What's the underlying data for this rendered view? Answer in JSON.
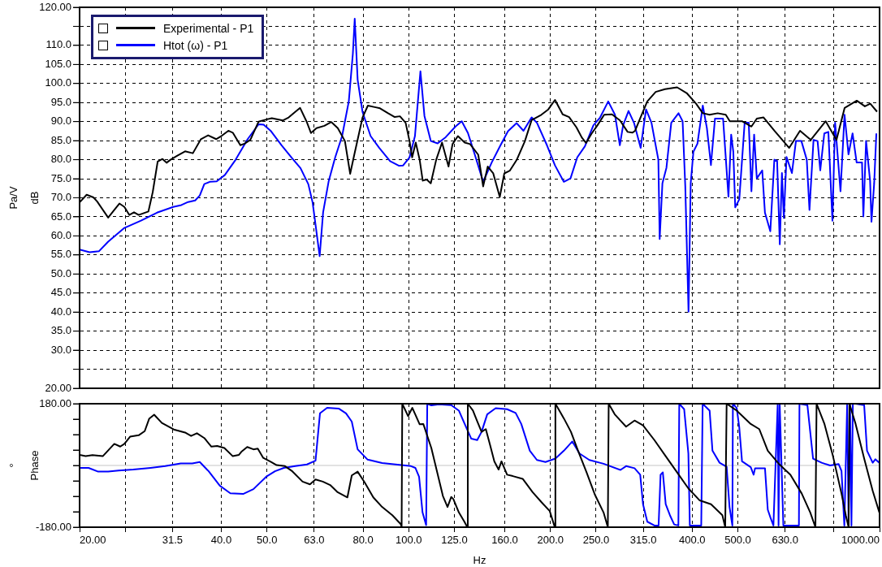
{
  "chart_data": [
    {
      "type": "line",
      "ylabel": "Pa/V\ndB",
      "log": "x",
      "grid": true,
      "legend": "top left",
      "marker": "none",
      "tick_labels": "y",
      "xlim": [
        20,
        1000
      ],
      "xticks": [
        {
          "value": 20,
          "label": null
        },
        {
          "value": 25,
          "label": null
        },
        {
          "value": 31.5,
          "label": null
        },
        {
          "value": 40,
          "label": null
        },
        {
          "value": 50,
          "label": null
        },
        {
          "value": 63,
          "label": null
        },
        {
          "value": 80,
          "label": null
        },
        {
          "value": 100,
          "label": null
        },
        {
          "value": 125,
          "label": null
        },
        {
          "value": 160,
          "label": null
        },
        {
          "value": 200,
          "label": null
        },
        {
          "value": 250,
          "label": null
        },
        {
          "value": 315,
          "label": null
        },
        {
          "value": 400,
          "label": null
        },
        {
          "value": 500,
          "label": null
        },
        {
          "value": 630,
          "label": null
        },
        {
          "value": 800,
          "label": null
        },
        {
          "value": 1000,
          "label": null
        }
      ],
      "ylim": [
        20,
        120
      ],
      "yticks": [
        {
          "value": 20,
          "label": "20.00"
        },
        {
          "value": 25,
          "label": null
        },
        {
          "value": 30,
          "label": "30.0"
        },
        {
          "value": 35,
          "label": "35.0"
        },
        {
          "value": 40,
          "label": "40.0"
        },
        {
          "value": 45,
          "label": "45.0"
        },
        {
          "value": 50,
          "label": "50.0"
        },
        {
          "value": 55,
          "label": "55.0"
        },
        {
          "value": 60,
          "label": "60.0"
        },
        {
          "value": 65,
          "label": "65.0"
        },
        {
          "value": 70,
          "label": "70.0"
        },
        {
          "value": 75,
          "label": "75.0"
        },
        {
          "value": 80,
          "label": "80.0"
        },
        {
          "value": 85,
          "label": "85.0"
        },
        {
          "value": 90,
          "label": "90.0"
        },
        {
          "value": 95,
          "label": "95.0"
        },
        {
          "value": 100,
          "label": "100.0"
        },
        {
          "value": 105,
          "label": "105.0"
        },
        {
          "value": 110,
          "label": "110.0"
        },
        {
          "value": 115,
          "label": null
        },
        {
          "value": 120,
          "label": "120.00"
        }
      ],
      "series": [
        {
          "name": "Experimental - P1",
          "color": "#000000",
          "x": [
            20,
            20.7,
            21.4,
            21.8,
            23,
            24.3,
            24.9,
            25.5,
            26.1,
            26.7,
            28,
            28.6,
            29.3,
            30,
            30.6,
            31.2,
            32.2,
            33.5,
            34.8,
            36.2,
            37.5,
            39,
            40.1,
            41.4,
            42.3,
            43.9,
            44.8,
            46.1,
            48,
            50,
            51.2,
            54,
            55.6,
            57.2,
            58.8,
            60.7,
            62,
            63.7,
            66.2,
            68.5,
            70.7,
            73.2,
            75.1,
            76.6,
            79.8,
            81.9,
            84.7,
            86.9,
            90.4,
            93.4,
            95.8,
            98.5,
            100.4,
            101.7,
            103.5,
            105.5,
            107.1,
            109.2,
            111.4,
            114.4,
            117.7,
            121.5,
            123.9,
            127.2,
            131.5,
            135,
            140.5,
            143.9,
            147.2,
            151.2,
            156.1,
            159.6,
            163.9,
            169.5,
            176.4,
            182.4,
            191.3,
            197.9,
            204.5,
            212.3,
            219.1,
            227.1,
            233.2,
            238,
            244.4,
            251.6,
            260.1,
            270.2,
            281,
            291.7,
            298.5,
            302.6,
            310.7,
            321.1,
            334.6,
            350.2,
            371.6,
            389.3,
            407.7,
            421.3,
            435.5,
            453.1,
            471.4,
            480.8,
            510.2,
            534.4,
            548.7,
            567.1,
            597.9,
            642.8,
            677.7,
            714.5,
            768.4,
            810,
            843,
            894.6,
            930.7,
            955.7,
            987.8
          ],
          "values": [
            68.8,
            70.8,
            70.1,
            69,
            64.8,
            68.5,
            67.6,
            65.5,
            66.2,
            65.5,
            66.4,
            71.5,
            79.5,
            80.2,
            79.2,
            80,
            81,
            82.2,
            81.7,
            85.4,
            86.4,
            85.4,
            86.3,
            87.6,
            87.1,
            83.8,
            84.2,
            85.2,
            90,
            90.6,
            90.9,
            90.3,
            91.1,
            92.4,
            93.6,
            90,
            87,
            88.3,
            88.9,
            89.9,
            88.3,
            84.9,
            76.3,
            81.2,
            91.1,
            94.2,
            93.8,
            93.5,
            92.2,
            91.2,
            91.4,
            89.7,
            84.9,
            80.6,
            84.5,
            80,
            74.5,
            74.8,
            73.8,
            80,
            84.5,
            78.2,
            84.1,
            86.2,
            84.5,
            84.1,
            81.3,
            73,
            78.2,
            76.4,
            70.2,
            76.4,
            77.1,
            79.9,
            84.8,
            90.4,
            91.8,
            93.2,
            95.7,
            91.9,
            91.2,
            88.5,
            85.8,
            84.4,
            86.8,
            89,
            91.8,
            91.9,
            90.3,
            87.3,
            87.1,
            87.6,
            91.1,
            95.3,
            97.8,
            98.5,
            99,
            97.5,
            94.7,
            92.2,
            91.8,
            92.2,
            91.8,
            90.1,
            90.1,
            88.7,
            90.8,
            91.1,
            87.6,
            83.1,
            87.6,
            85.2,
            90.1,
            85.2,
            93.6,
            95.5,
            94,
            94.7,
            92.6
          ]
        },
        {
          "name": "Htot (ω) - P1",
          "color": "#0000ff",
          "x": [
            20,
            21,
            22,
            23,
            24.9,
            27,
            29.2,
            31.6,
            32.9,
            34,
            35.2,
            36,
            36.8,
            37.8,
            39.1,
            40.7,
            42.9,
            45.5,
            48,
            49.2,
            50.9,
            53.7,
            56.6,
            58.9,
            61.2,
            62.5,
            64.7,
            65.8,
            67.6,
            69.8,
            72.2,
            74.6,
            76.1,
            76.8,
            77.9,
            79.8,
            83,
            86.6,
            91.3,
            95.4,
            97.3,
            100.4,
            103.1,
            105.9,
            108,
            111.4,
            115.2,
            119.8,
            125.7,
            129.6,
            133.6,
            138.1,
            143.9,
            150.1,
            156.2,
            162.5,
            169.5,
            175.3,
            182.4,
            187.2,
            196.6,
            204.5,
            213.5,
            220.6,
            228,
            236.7,
            246.7,
            255,
            265.3,
            274.2,
            280.8,
            285.3,
            293,
            300.9,
            310.9,
            319.2,
            327.8,
            339,
            341.2,
            345.8,
            352.7,
            361.1,
            374.2,
            381.7,
            386.7,
            392.9,
            397.1,
            402.4,
            410.4,
            421.3,
            429.8,
            438.4,
            447.2,
            465.2,
            477.6,
            484,
            489.1,
            493.7,
            503.6,
            517,
            527.4,
            534.4,
            541.5,
            548.7,
            563.4,
            570.9,
            586.1,
            597.8,
            605.9,
            613.9,
            620.4,
            626.2,
            634.5,
            651.4,
            664.4,
            682.3,
            700.5,
            709.8,
            724,
            738.5,
            748.3,
            763.2,
            778.5,
            794.1,
            804.6,
            826.1,
            842.6,
            859.1,
            876.3,
            893.9,
            917.8,
            923.8,
            936.2,
            954.8,
            961.2,
            974,
            984.4
          ],
          "values": [
            56.4,
            55.7,
            56,
            58.5,
            62.1,
            64,
            66.1,
            67.6,
            68.1,
            68.9,
            69.3,
            70.6,
            73.6,
            74.2,
            74.3,
            76,
            80,
            85.4,
            89.3,
            89.2,
            87.6,
            83.8,
            80.3,
            77.8,
            73.6,
            68.8,
            54.7,
            66.2,
            74.3,
            80.6,
            86.2,
            95.3,
            107.8,
            117,
            101,
            92.5,
            86.2,
            83.1,
            79.6,
            78.4,
            78.5,
            80.6,
            86.2,
            103.2,
            91.5,
            84.9,
            84.3,
            85.9,
            88.7,
            90.1,
            87,
            81.4,
            74.2,
            79.3,
            83.5,
            87.5,
            89.6,
            87.6,
            91.1,
            89.7,
            83.8,
            78.5,
            74.2,
            75.1,
            80.6,
            83.5,
            89,
            91.1,
            95.3,
            91.8,
            83.8,
            89,
            92.8,
            89.7,
            83.1,
            93.2,
            89.7,
            80,
            59.2,
            73.8,
            77.9,
            89.7,
            92.2,
            90.1,
            73.1,
            40.1,
            73.8,
            82.1,
            84.2,
            94.2,
            88.3,
            78.6,
            90.8,
            90.8,
            70.3,
            86.6,
            82.1,
            67.5,
            69.6,
            89.7,
            89.7,
            71.7,
            86.6,
            75.1,
            77.2,
            66.1,
            61.2,
            80,
            79.7,
            57.8,
            76.5,
            64.7,
            80.7,
            76.5,
            84.9,
            84.9,
            80,
            66.8,
            85.2,
            84.9,
            77.2,
            86.9,
            87.3,
            64,
            89.7,
            71.7,
            91.8,
            81.4,
            86.9,
            79.3,
            79.3,
            65.1,
            84.9,
            74.4,
            63.7,
            73.8,
            86.9
          ]
        }
      ]
    },
    {
      "type": "line",
      "ylabel": "°\nPhase",
      "xlabel": "Hz",
      "log": "x",
      "grid": "x",
      "marker": "none",
      "xlim": [
        20,
        1000
      ],
      "xticks": [
        {
          "value": 20,
          "label": "20.00"
        },
        {
          "value": 25,
          "label": null
        },
        31.5,
        {
          "value": 40,
          "label": "40.0"
        },
        {
          "value": 50,
          "label": "50.0"
        },
        {
          "value": 63,
          "label": "63.0"
        },
        {
          "value": 80,
          "label": "80.0"
        },
        {
          "value": 100,
          "label": "100.0"
        },
        {
          "value": 125,
          "label": "125.0"
        },
        {
          "value": 160,
          "label": "160.0"
        },
        {
          "value": 200,
          "label": "200.0"
        },
        {
          "value": 250,
          "label": "250.0"
        },
        {
          "value": 315,
          "label": "315.0"
        },
        {
          "value": 400,
          "label": "400.0"
        },
        {
          "value": 500,
          "label": "500.0"
        },
        {
          "value": 630,
          "label": "630.0"
        },
        {
          "value": 800,
          "label": null
        },
        {
          "value": 1000,
          "label": "1000.00"
        }
      ],
      "ylim": [
        -180,
        180
      ],
      "yticks": [
        {
          "value": -180,
          "label": "-180.00"
        },
        {
          "value": -135,
          "label": null
        },
        {
          "value": -90,
          "label": null
        },
        {
          "value": -45,
          "label": null
        },
        {
          "value": 0,
          "label": null
        },
        {
          "value": 45,
          "label": null
        },
        {
          "value": 90,
          "label": null
        },
        {
          "value": 135,
          "label": null
        },
        {
          "value": 180,
          "label": "180.00"
        }
      ],
      "ref_lines": [
        {
          "axis": "y",
          "value": 0,
          "color": "#d9d9d9"
        }
      ],
      "series": [
        {
          "color": "#000000",
          "x": [
            20,
            20.6,
            21.3,
            22.4,
            23.7,
            24.4,
            24.9,
            25.6,
            26.7,
            27.5,
            28.1,
            28.8,
            29.9,
            31.7,
            33.5,
            34.5,
            35.5,
            36.8,
            38.1,
            39.2,
            40.6,
            42.3,
            43.6,
            44.2,
            45.4,
            46.8,
            47.8,
            49.1,
            50.9,
            52.4,
            54.6,
            56.6,
            59.5,
            61.7,
            63.4,
            65.7,
            68.1,
            70.5,
            74.1,
            75.7,
            77.9,
            80.6,
            84.1,
            87.8,
            92.3,
            96.2,
            96.6,
            96.9,
            99.7,
            101.8,
            105.5,
            107.4,
            111.7,
            118.2,
            120.9,
            123.1,
            124.4,
            127.8,
            131.3,
            133.2,
            133.5,
            136.9,
            139.8,
            142.8,
            145.8,
            148.9,
            152,
            155.2,
            157.4,
            161.8,
            166.4,
            174.6,
            183.3,
            191.1,
            199.3,
            204.3,
            204.9,
            213.6,
            221.1,
            228.9,
            238.6,
            248.7,
            259.3,
            264.8,
            265.9,
            273.9,
            289.5,
            301.7,
            314.5,
            332.5,
            351.4,
            371.4,
            392.6,
            415,
            438.6,
            463.6,
            470.1,
            473.4,
            497.2,
            532.6,
            555.3,
            578.9,
            611.8,
            646.7,
            683.5,
            712.5,
            730.8,
            734.9,
            763.8,
            796.3,
            830.2,
            847.7,
            859.5,
            863.1,
            889.5,
            927.5,
            967,
            999
          ],
          "values": [
            31,
            27,
            30,
            27,
            63,
            55,
            63,
            84,
            88,
            100,
            136,
            148,
            124,
            105,
            96,
            86,
            94,
            80,
            55,
            57,
            51,
            27,
            31,
            41,
            54,
            47,
            49,
            22,
            11,
            1,
            -2,
            -17,
            -47,
            -55,
            -41,
            -47,
            -57,
            -77,
            -93,
            -29,
            -18,
            -49,
            -93,
            -121,
            -145,
            -171,
            -180,
            180,
            144,
            168,
            120,
            121,
            51,
            -89,
            -121,
            -92,
            -98,
            -137,
            -164,
            -180,
            180,
            160,
            129,
            98,
            106,
            59,
            12,
            -12,
            12,
            -27,
            -31,
            -39,
            -78,
            -106,
            -133,
            -180,
            180,
            137,
            98,
            43,
            -20,
            -86,
            -137,
            -180,
            180,
            149,
            113,
            131,
            117,
            74,
            27,
            -20,
            -67,
            -102,
            -113,
            -145,
            -180,
            180,
            160,
            121,
            106,
            43,
            4,
            -27,
            -82,
            -137,
            -180,
            180,
            121,
            27,
            -82,
            -145,
            -180,
            180,
            121,
            20,
            -74,
            -137
          ]
        },
        {
          "color": "#0000ff",
          "x": [
            20,
            20.9,
            21.9,
            23,
            24.2,
            26,
            28.3,
            30.4,
            32.8,
            34.7,
            36,
            37.6,
            39.7,
            41.8,
            44.5,
            46.8,
            49.8,
            52,
            54.3,
            57.4,
            60.8,
            63.4,
            64.8,
            67.1,
            71,
            73.6,
            75.7,
            77.9,
            81.8,
            87.8,
            95.6,
            101.1,
            103.3,
            105.2,
            107,
            108.9,
            109.5,
            111.7,
            115.9,
            123.1,
            127.8,
            132.3,
            135.8,
            139.8,
            142.8,
            146.8,
            153,
            161.8,
            168.7,
            173.4,
            180.8,
            187.2,
            195.2,
            204.9,
            213.6,
            222.6,
            230.5,
            241.9,
            259.3,
            281.7,
            289.5,
            301.7,
            310.2,
            314.5,
            321.2,
            332.5,
            339.4,
            342.7,
            346.5,
            351.4,
            358.7,
            366.3,
            373.9,
            375.5,
            384.6,
            392.6,
            395.4,
            418.1,
            421,
            435.6,
            441.7,
            457.3,
            473.4,
            480.1,
            486.8,
            488.1,
            497.2,
            503.4,
            510.4,
            532.6,
            540.2,
            544,
            571,
            578.9,
            586.9,
            595.1,
            607.7,
            610.2,
            613.6,
            624.7,
            674.1,
            675.9,
            702.6,
            722.4,
            753.2,
            785,
            818.7,
            830.2,
            841.8,
            853.5,
            859.5,
            865.5,
            871.5,
            877.6,
            889.5,
            927.5,
            940.5,
            967,
            979.8,
            999
          ],
          "values": [
            -7,
            -7,
            -18,
            -18,
            -15,
            -12,
            -7,
            -2,
            6,
            6,
            10,
            -17,
            -59,
            -81,
            -83,
            -69,
            -33,
            -17,
            -7,
            -2,
            3,
            14,
            152,
            168,
            166,
            152,
            128,
            47,
            17,
            7,
            2,
            -2,
            -7,
            -33,
            -137,
            -174,
            180,
            175,
            178,
            176,
            160,
            113,
            78,
            74,
            98,
            149,
            167,
            164,
            153,
            121,
            43,
            16,
            10,
            20,
            43,
            70,
            35,
            16,
            5,
            -13,
            -2,
            -8,
            -27,
            -113,
            -164,
            -175,
            -175,
            -27,
            -20,
            -113,
            -145,
            -172,
            -175,
            180,
            164,
            35,
            -175,
            -175,
            180,
            160,
            43,
            8,
            -4,
            -121,
            -175,
            180,
            168,
            113,
            12,
            -5,
            -27,
            -8,
            -8,
            -129,
            -153,
            -175,
            180,
            -175,
            180,
            -175,
            -175,
            180,
            176,
            20,
            8,
            0,
            4,
            -16,
            -175,
            180,
            -175,
            180,
            -175,
            180,
            180,
            176,
            43,
            8,
            18,
            8
          ]
        }
      ]
    }
  ]
}
